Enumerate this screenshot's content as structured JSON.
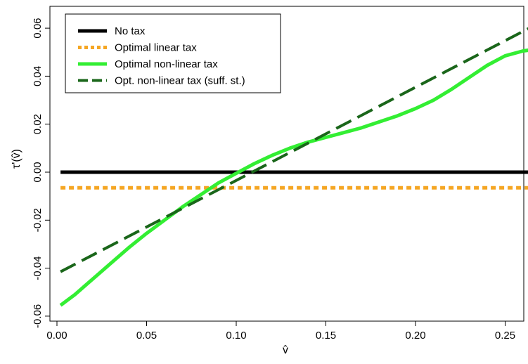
{
  "chart_data": {
    "type": "line",
    "xlabel": "v̂",
    "ylabel": "τ'(v̂)",
    "xlim": [
      0.0,
      0.28
    ],
    "ylim": [
      -0.058,
      0.064
    ],
    "x_ticks": [
      0.0,
      0.05,
      0.1,
      0.15,
      0.2,
      0.25
    ],
    "x_tick_labels": [
      "0.00",
      "0.05",
      "0.10",
      "0.15",
      "0.20",
      "0.25"
    ],
    "y_ticks": [
      -0.06,
      -0.04,
      -0.02,
      0.0,
      0.02,
      0.04,
      0.06
    ],
    "y_tick_labels": [
      "-0.06",
      "-0.04",
      "-0.02",
      "0.00",
      "0.02",
      "0.04",
      "0.06"
    ],
    "grid": false,
    "legend_position": "top-left",
    "series": [
      {
        "name": "No tax",
        "color": "#000000",
        "dash": "solid",
        "width": 5,
        "x": [
          0.002,
          0.277
        ],
        "y": [
          0.0,
          0.0
        ]
      },
      {
        "name": "Optimal linear tax",
        "color": "#f5a623",
        "dash": "dotted",
        "width": 5,
        "x": [
          0.002,
          0.277
        ],
        "y": [
          -0.0065,
          -0.0065
        ]
      },
      {
        "name": "Optimal non-linear tax",
        "color": "#33ee33",
        "dash": "solid",
        "width": 5,
        "x": [
          0.002,
          0.01,
          0.02,
          0.03,
          0.04,
          0.05,
          0.06,
          0.07,
          0.08,
          0.09,
          0.1,
          0.11,
          0.12,
          0.13,
          0.14,
          0.15,
          0.16,
          0.17,
          0.18,
          0.19,
          0.2,
          0.21,
          0.22,
          0.23,
          0.24,
          0.25,
          0.26,
          0.265,
          0.27,
          0.277
        ],
        "y": [
          -0.0555,
          -0.051,
          -0.0445,
          -0.038,
          -0.0315,
          -0.0255,
          -0.02,
          -0.0145,
          -0.0095,
          -0.0045,
          -0.0005,
          0.0035,
          0.007,
          0.01,
          0.0125,
          0.0145,
          0.0165,
          0.0185,
          0.021,
          0.0235,
          0.0265,
          0.03,
          0.0345,
          0.0395,
          0.0445,
          0.0485,
          0.0505,
          0.051,
          0.0535,
          0.0555
        ]
      },
      {
        "name": "Opt. non-linear tax (suff. st.)",
        "color": "#1a661a",
        "dash": "dashed",
        "width": 4,
        "x": [
          0.002,
          0.275
        ],
        "y": [
          -0.0415,
          0.0645
        ]
      }
    ]
  }
}
